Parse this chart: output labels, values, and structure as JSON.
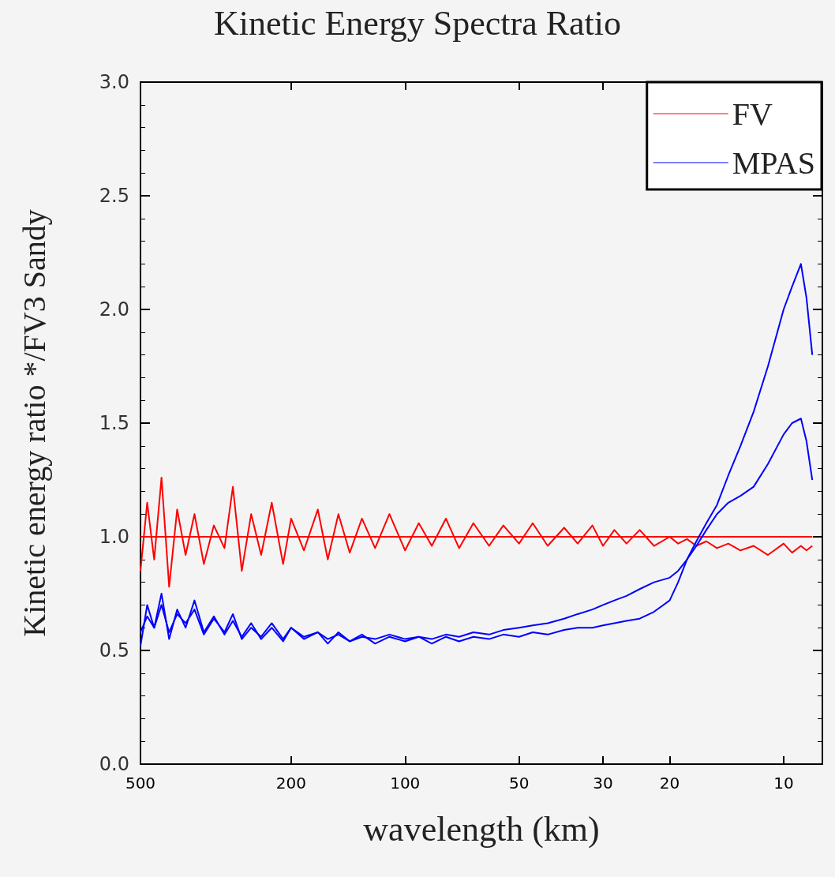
{
  "chart_data": {
    "type": "line",
    "title": "Kinetic Energy Spectra Ratio",
    "xlabel": "wavelength (km)",
    "ylabel": "Kinetic energy ratio */FV3 Sandy",
    "log": "x",
    "xlim": [
      500,
      7.9
    ],
    "xticks": [
      500,
      200,
      100,
      50,
      30,
      20,
      10
    ],
    "ylim": [
      0,
      3
    ],
    "yticks": [
      {
        "value": 0,
        "label": "0.0"
      },
      0.5,
      {
        "value": 1,
        "label": "1.0"
      },
      1.5,
      {
        "value": 2,
        "label": "2.0"
      },
      2.5,
      {
        "value": 3,
        "label": "3.0"
      }
    ],
    "grid": false,
    "legend": "top right",
    "marker": "none",
    "line_style": "solid",
    "x": [
      500,
      480,
      460,
      440,
      420,
      400,
      380,
      360,
      340,
      320,
      300,
      285,
      270,
      255,
      240,
      225,
      210,
      200,
      185,
      170,
      160,
      150,
      140,
      130,
      120,
      110,
      100,
      92,
      85,
      78,
      72,
      66,
      60,
      55,
      50,
      46,
      42,
      38,
      35,
      32,
      30,
      28,
      26,
      24,
      22,
      20,
      19,
      18,
      17,
      16,
      15,
      14,
      13,
      12,
      11,
      10,
      9.5,
      9,
      8.7,
      8.4
    ],
    "series": [
      {
        "name": "FV",
        "color": "#ff0000",
        "x": [
          500,
          8.4
        ],
        "values": [
          1,
          1
        ]
      },
      {
        "color": "#ff0000",
        "values": [
          0.85,
          1.15,
          0.9,
          1.26,
          0.78,
          1.12,
          0.92,
          1.1,
          0.88,
          1.05,
          0.95,
          1.22,
          0.85,
          1.1,
          0.92,
          1.15,
          0.88,
          1.08,
          0.94,
          1.12,
          0.9,
          1.1,
          0.93,
          1.08,
          0.95,
          1.1,
          0.94,
          1.06,
          0.96,
          1.08,
          0.95,
          1.06,
          0.96,
          1.05,
          0.97,
          1.06,
          0.96,
          1.04,
          0.97,
          1.05,
          0.96,
          1.03,
          0.97,
          1.03,
          0.96,
          1.0,
          0.97,
          0.99,
          0.96,
          0.98,
          0.95,
          0.97,
          0.94,
          0.96,
          0.92,
          0.97,
          0.93,
          0.96,
          0.94,
          0.96
        ]
      },
      {
        "name": "MPAS",
        "color": "#0000ff",
        "values": [
          0.52,
          0.7,
          0.6,
          0.75,
          0.55,
          0.68,
          0.6,
          0.72,
          0.58,
          0.65,
          0.57,
          0.63,
          0.56,
          0.62,
          0.55,
          0.6,
          0.54,
          0.6,
          0.55,
          0.58,
          0.53,
          0.58,
          0.54,
          0.57,
          0.53,
          0.56,
          0.54,
          0.56,
          0.53,
          0.56,
          0.54,
          0.56,
          0.55,
          0.57,
          0.56,
          0.58,
          0.57,
          0.59,
          0.6,
          0.6,
          0.61,
          0.62,
          0.63,
          0.64,
          0.67,
          0.72,
          0.8,
          0.9,
          0.98,
          1.06,
          1.14,
          1.27,
          1.4,
          1.55,
          1.75,
          2.0,
          2.1,
          2.2,
          2.05,
          1.8
        ]
      },
      {
        "color": "#0000ff",
        "values": [
          0.58,
          0.65,
          0.6,
          0.7,
          0.58,
          0.66,
          0.62,
          0.68,
          0.57,
          0.64,
          0.58,
          0.66,
          0.55,
          0.6,
          0.56,
          0.62,
          0.55,
          0.6,
          0.56,
          0.58,
          0.55,
          0.57,
          0.54,
          0.56,
          0.55,
          0.57,
          0.55,
          0.56,
          0.55,
          0.57,
          0.56,
          0.58,
          0.57,
          0.59,
          0.6,
          0.61,
          0.62,
          0.64,
          0.66,
          0.68,
          0.7,
          0.72,
          0.74,
          0.77,
          0.8,
          0.82,
          0.85,
          0.9,
          0.96,
          1.03,
          1.1,
          1.15,
          1.18,
          1.22,
          1.32,
          1.45,
          1.5,
          1.52,
          1.42,
          1.25
        ]
      }
    ]
  }
}
